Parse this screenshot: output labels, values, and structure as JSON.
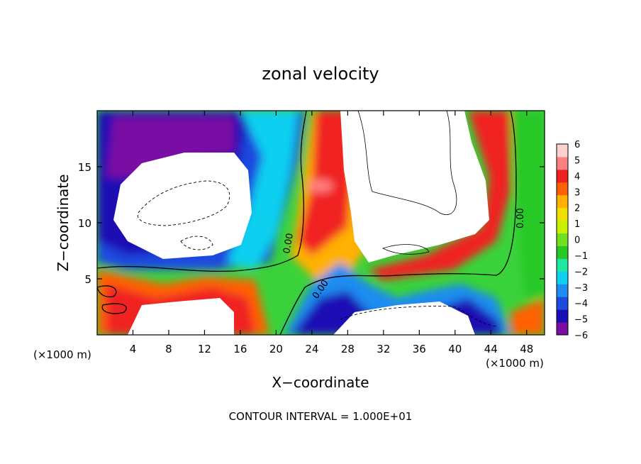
{
  "chart_data": {
    "type": "heatmap",
    "title": "zonal velocity",
    "xlabel": "X−coordinate",
    "ylabel": "Z−coordinate",
    "x_unit_left": "(×1000 m)",
    "x_unit_right": "(×1000 m)",
    "footer": "CONTOUR INTERVAL = 1.000E+01",
    "xlim": [
      0,
      50
    ],
    "ylim": [
      0,
      20
    ],
    "x_ticks": [
      4,
      8,
      12,
      16,
      20,
      24,
      28,
      32,
      36,
      40,
      44,
      48
    ],
    "y_ticks": [
      5,
      10,
      15
    ],
    "colorbar": {
      "min": -6,
      "max": 6,
      "tick_labels": [
        "6",
        "5",
        "4",
        "3",
        "2",
        "1",
        "0",
        "−1",
        "−2",
        "−3",
        "−4",
        "−5",
        "−6"
      ],
      "colors": [
        "#7a0ea3",
        "#1a0fb5",
        "#1f4ae0",
        "#1e8cf0",
        "#10d0f0",
        "#20e8a0",
        "#28c828",
        "#70e020",
        "#c8f000",
        "#f0e000",
        "#ffb000",
        "#ff6000",
        "#f02020",
        "#ff8080",
        "#ffd0d0"
      ]
    },
    "contour_labels": [
      "0.00",
      "0.00",
      "0.00"
    ],
    "regions_exceeding_colorbar": "white"
  }
}
